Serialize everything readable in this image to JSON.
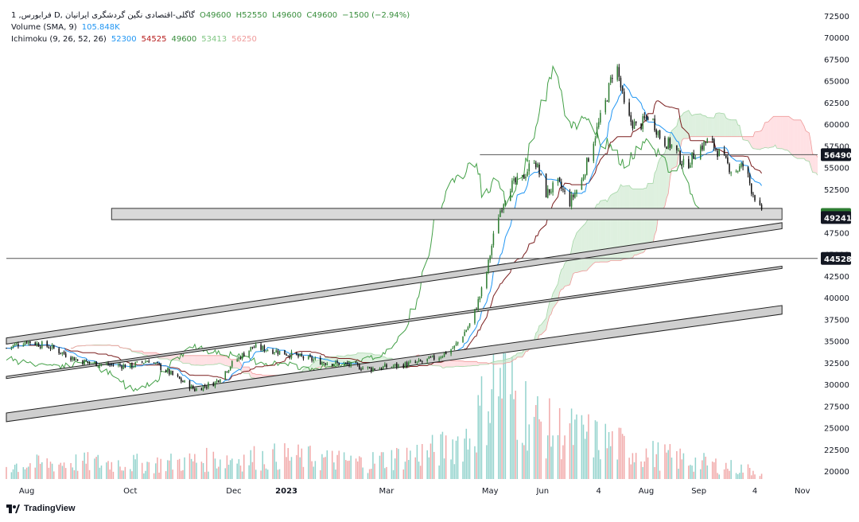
{
  "legend": {
    "symbol": "1 ,فرابورس D, گاگلی-اقتصادی نگین گردشگری ایرانیان",
    "open": "O49600",
    "high": "H52550",
    "low": "L49600",
    "close": "C49600",
    "change": "−1500 (−2.94%)",
    "volume_label": "Volume (SMA, 9)",
    "volume_value": "105.848K",
    "ichimoku_label": "Ichimoku (9, 26, 52, 26)",
    "ichimoku_values": [
      "52300",
      "54525",
      "49600",
      "53413",
      "56250"
    ]
  },
  "colors": {
    "up": "#2e7d32",
    "down": "#111111",
    "tenkan": "#2196f3",
    "kijun": "#7b1f1f",
    "chikou": "#43a047",
    "cloud_bull": "#c8e6c9",
    "cloud_bear": "#ffcdd2",
    "vol_up": "#80cbc4",
    "vol_down": "#ef9a9a",
    "current_badge": "#2e7d32"
  },
  "branding": {
    "logo_text": "TradingView",
    "logo_icon": "tradingview-logo-icon"
  },
  "chart_data": {
    "type": "candlestick",
    "price_axis": {
      "ticks": [
        72500,
        70000,
        67500,
        65000,
        62500,
        60000,
        57500,
        55000,
        52500,
        47500,
        45000,
        42500,
        40000,
        37500,
        35000,
        32500,
        30000,
        27500,
        25000,
        22500,
        20000
      ],
      "badges": [
        {
          "value": 56490,
          "label": "56490",
          "style": "dark"
        },
        {
          "value": 49600,
          "label": "49600",
          "style": "green"
        },
        {
          "value": 49241,
          "label": "49241",
          "style": "dark"
        },
        {
          "value": 44528,
          "label": "44528",
          "style": "dark"
        }
      ]
    },
    "time_axis": {
      "labels": [
        "Aug",
        "Oct",
        "Dec",
        "2023",
        "Mar",
        "May",
        "Jun",
        "4",
        "Aug",
        "Sep",
        "4",
        "Nov"
      ],
      "label_dates": [
        "2022-08-01",
        "2022-10-01",
        "2022-12-01",
        "2023-01-01",
        "2023-03-01",
        "2023-05-01",
        "2023-06-01",
        "2023-07-04",
        "2023-08-01",
        "2023-09-01",
        "2023-10-04",
        "2023-11-01"
      ],
      "start": "2022-07-20",
      "end": "2023-11-10"
    },
    "price_path": [
      [
        "2022-07-20",
        34200
      ],
      [
        "2022-08-01",
        35000
      ],
      [
        "2022-08-15",
        34300
      ],
      [
        "2022-09-01",
        32700
      ],
      [
        "2022-09-15",
        32300
      ],
      [
        "2022-10-01",
        32100
      ],
      [
        "2022-10-12",
        32800
      ],
      [
        "2022-10-25",
        31200
      ],
      [
        "2022-11-08",
        29400
      ],
      [
        "2022-11-20",
        30200
      ],
      [
        "2022-12-01",
        32600
      ],
      [
        "2022-12-12",
        34300
      ],
      [
        "2022-12-25",
        33900
      ],
      [
        "2023-01-08",
        33200
      ],
      [
        "2023-01-22",
        32600
      ],
      [
        "2023-02-05",
        32300
      ],
      [
        "2023-02-20",
        31800
      ],
      [
        "2023-03-05",
        32100
      ],
      [
        "2023-03-20",
        32500
      ],
      [
        "2023-04-01",
        33200
      ],
      [
        "2023-04-10",
        34300
      ],
      [
        "2023-04-20",
        37200
      ],
      [
        "2023-04-28",
        42000
      ],
      [
        "2023-05-05",
        49000
      ],
      [
        "2023-05-12",
        52800
      ],
      [
        "2023-05-20",
        53700
      ],
      [
        "2023-05-27",
        56100
      ],
      [
        "2023-06-03",
        52000
      ],
      [
        "2023-06-10",
        53200
      ],
      [
        "2023-06-17",
        51000
      ],
      [
        "2023-06-24",
        53500
      ],
      [
        "2023-07-01",
        58200
      ],
      [
        "2023-07-08",
        62500
      ],
      [
        "2023-07-14",
        67500
      ],
      [
        "2023-07-20",
        61000
      ],
      [
        "2023-07-27",
        59500
      ],
      [
        "2023-08-03",
        61200
      ],
      [
        "2023-08-10",
        58200
      ],
      [
        "2023-08-17",
        57400
      ],
      [
        "2023-08-24",
        55000
      ],
      [
        "2023-08-31",
        57000
      ],
      [
        "2023-09-07",
        58200
      ],
      [
        "2023-09-14",
        56400
      ],
      [
        "2023-09-21",
        54500
      ],
      [
        "2023-09-28",
        55300
      ],
      [
        "2023-10-02",
        52500
      ],
      [
        "2023-10-06",
        50800
      ],
      [
        "2023-10-08",
        49600
      ]
    ],
    "volume_path": [
      [
        "2022-07-20",
        0.1
      ],
      [
        "2022-09-01",
        0.12
      ],
      [
        "2022-10-15",
        0.11
      ],
      [
        "2022-11-20",
        0.14
      ],
      [
        "2023-01-01",
        0.16
      ],
      [
        "2023-02-15",
        0.12
      ],
      [
        "2023-04-01",
        0.2
      ],
      [
        "2023-04-20",
        0.3
      ],
      [
        "2023-05-05",
        0.7
      ],
      [
        "2023-05-15",
        0.55
      ],
      [
        "2023-06-01",
        0.35
      ],
      [
        "2023-07-01",
        0.28
      ],
      [
        "2023-08-01",
        0.18
      ],
      [
        "2023-09-01",
        0.12
      ],
      [
        "2023-10-08",
        0.06
      ]
    ],
    "channels": [
      {
        "name": "upper",
        "start": [
          "2022-07-20",
          35000
        ],
        "end": [
          "2023-10-20",
          48300
        ],
        "width": 700
      },
      {
        "name": "middle",
        "start": [
          "2022-07-20",
          30800
        ],
        "end": [
          "2023-10-20",
          43500
        ],
        "width": 250
      },
      {
        "name": "lower",
        "start": [
          "2022-07-20",
          26200
        ],
        "end": [
          "2023-10-20",
          38600
        ],
        "width": 1000
      }
    ],
    "zones": [
      {
        "from": "2022-09-20",
        "to": "2023-10-20",
        "low": 49000,
        "high": 50300
      }
    ],
    "horizontal_lines": [
      {
        "value": 56490,
        "from": "2023-04-25"
      },
      {
        "value": 44528,
        "from": "2022-07-20"
      }
    ]
  }
}
